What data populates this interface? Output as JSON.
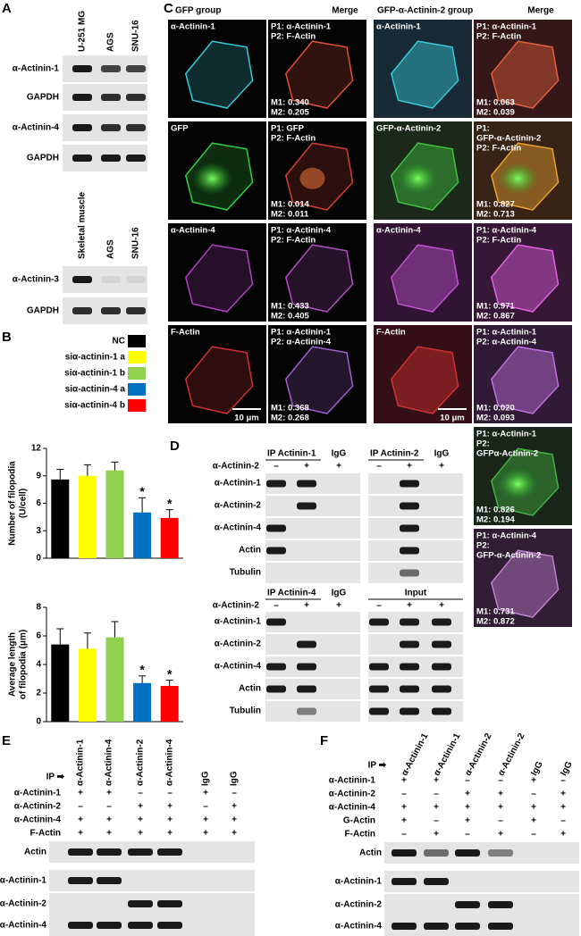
{
  "panel_a": {
    "label": "A",
    "blot1": {
      "lanes": [
        "U-251 MG",
        "AGS",
        "SNU-16"
      ],
      "rows": [
        "α-Actinin-1",
        "GAPDH",
        "α-Actinin-4",
        "GAPDH"
      ]
    },
    "blot2": {
      "lanes": [
        "Skeletal muscle",
        "AGS",
        "SNU-16"
      ],
      "rows": [
        "α-Actinin-3",
        "GAPDH"
      ]
    }
  },
  "chart_data": [
    {
      "type": "bar",
      "panel_label": "B",
      "categories": [
        "NC",
        "siα-actinin-1 a",
        "siα-actinin-1 b",
        "siα-actinin-4 a",
        "siα-actinin-4 b"
      ],
      "colors": [
        "#000000",
        "#ffff00",
        "#92d050",
        "#0070c0",
        "#ff0000"
      ],
      "values": [
        8.6,
        9.0,
        9.6,
        5.0,
        4.4
      ],
      "errors": [
        1.1,
        1.2,
        0.9,
        1.6,
        0.9
      ],
      "annotations": [
        null,
        null,
        null,
        "*",
        "*"
      ],
      "ylabel": [
        "Number of filopodia",
        "(U/cell)"
      ],
      "ylim": [
        0,
        12
      ],
      "yticks": [
        0,
        3,
        6,
        9,
        12
      ]
    },
    {
      "type": "bar",
      "colors": [
        "#000000",
        "#ffff00",
        "#92d050",
        "#0070c0",
        "#ff0000"
      ],
      "values": [
        5.4,
        5.1,
        5.9,
        2.7,
        2.5
      ],
      "errors": [
        1.1,
        1.1,
        1.1,
        0.5,
        0.4
      ],
      "annotations": [
        null,
        null,
        null,
        "*",
        "*"
      ],
      "ylabel": [
        "Average length",
        "of filopodia (μm)"
      ],
      "ylim": [
        0,
        8
      ],
      "yticks": [
        0,
        2,
        4,
        6,
        8
      ]
    }
  ],
  "panel_c": {
    "label": "C",
    "headers": [
      "GFP group",
      "Merge",
      "GFP-α-Actinin-2 group",
      "Merge"
    ],
    "scale_bar": "10 μm",
    "cells": [
      {
        "top": [
          "α-Actinin-1"
        ]
      },
      {
        "top": [
          "P1: α-Actinin-1",
          "P2: F-Actin"
        ],
        "bottom": [
          "M1: 0.340",
          "M2: 0.205"
        ]
      },
      {
        "top": [
          "α-Actinin-1"
        ]
      },
      {
        "top": [
          "P1: α-Actinin-1",
          "P2: F-Actin"
        ],
        "bottom": [
          "M1: 0.063",
          "M2: 0.039"
        ]
      },
      {
        "top": [
          "GFP"
        ]
      },
      {
        "top": [
          "P1: GFP",
          "P2: F-Actin"
        ],
        "bottom": [
          "M1: 0.014",
          "M2: 0.011"
        ]
      },
      {
        "top": [
          "GFP-α-Actinin-2"
        ]
      },
      {
        "top": [
          "P1:",
          "GFP-α-Actinin-2",
          "P2: F-Actin"
        ],
        "bottom": [
          "M1: 0.827",
          "M2: 0.713"
        ]
      },
      {
        "top": [
          "α-Actinin-4"
        ]
      },
      {
        "top": [
          "P1: α-Actinin-4",
          "P2: F-Actin"
        ],
        "bottom": [
          "M1: 0.433",
          "M2: 0.405"
        ]
      },
      {
        "top": [
          "α-Actinin-4"
        ]
      },
      {
        "top": [
          "P1: α-Actinin-4",
          "P2: F-Actin"
        ],
        "bottom": [
          "M1: 0.971",
          "M2: 0.867"
        ]
      },
      {
        "top": [
          "F-Actin"
        ]
      },
      {
        "top": [
          "P1: α-Actinin-1",
          "P2: α-Actinin-4"
        ],
        "bottom": [
          "M1: 0.368",
          "M2: 0.268"
        ]
      },
      {
        "top": [
          "F-Actin"
        ]
      },
      {
        "top": [
          "P1: α-Actinin-1",
          "P2: α-Actinin-4"
        ],
        "bottom": [
          "M1: 0.020",
          "M2: 0.093"
        ]
      },
      {
        "top": [
          "P1: α-Actinin-1",
          "P2:",
          "GFPα-Actinin-2"
        ],
        "bottom": [
          "M1: 0.826",
          "M2: 0.194"
        ]
      },
      {
        "top": [
          "P1: α-Actinin-4",
          "P2:",
          "GFP-α-Actinin-2"
        ],
        "bottom": [
          "M1: 0.731",
          "M2: 0.872"
        ]
      }
    ]
  },
  "panel_d": {
    "label": "D",
    "treatment": "α-Actinin-2",
    "signs": [
      "–",
      "+",
      "+"
    ],
    "top": {
      "groups": [
        {
          "title": "IP Actinin-1",
          "control": "IgG"
        },
        {
          "title": "IP Actinin-2",
          "control": "IgG"
        }
      ],
      "rows": [
        "α-Actinin-1",
        "α-Actinin-2",
        "α-Actinin-4",
        "Actin",
        "Tubulin"
      ]
    },
    "bottom": {
      "groups": [
        {
          "title": "IP Actinin-4",
          "control": "IgG"
        },
        {
          "title": "Input"
        }
      ],
      "rows": [
        "α-Actinin-1",
        "α-Actinin-2",
        "α-Actinin-4",
        "Actin",
        "Tubulin"
      ]
    }
  },
  "panel_e": {
    "label": "E",
    "ip_marker": "IP ➡",
    "lanes": [
      "α-Actinin-1",
      "α-Actinin-4",
      "α-Actinin-2",
      "α-Actinin-4",
      "IgG",
      "IgG"
    ],
    "conditions": [
      {
        "name": "α-Actinin-1",
        "signs": [
          "+",
          "+",
          "–",
          "–",
          "+",
          "–"
        ]
      },
      {
        "name": "α-Actinin-2",
        "signs": [
          "–",
          "–",
          "+",
          "+",
          "–",
          "+"
        ]
      },
      {
        "name": "α-Actinin-4",
        "signs": [
          "+",
          "+",
          "+",
          "+",
          "+",
          "+"
        ]
      },
      {
        "name": "F-Actin",
        "signs": [
          "+",
          "+",
          "+",
          "+",
          "+",
          "+"
        ]
      }
    ],
    "rows": [
      "Actin",
      "α-Actinin-1",
      "α-Actinin-2",
      "α-Actinin-4"
    ]
  },
  "panel_f": {
    "label": "F",
    "ip_marker": "IP ➡",
    "lanes": [
      "α-Actinin-1",
      "α-Actinin-1",
      "α-Actinin-2",
      "α-Actinin-2",
      "IgG",
      "IgG"
    ],
    "conditions": [
      {
        "name": "α-Actinin-1",
        "signs": [
          "+",
          "+",
          "–",
          "–",
          "+",
          "–"
        ]
      },
      {
        "name": "α-Actinin-2",
        "signs": [
          "–",
          "–",
          "+",
          "+",
          "–",
          "+"
        ]
      },
      {
        "name": "α-Actinin-4",
        "signs": [
          "+",
          "+",
          "+",
          "+",
          "+",
          "+"
        ]
      },
      {
        "name": "G-Actin",
        "signs": [
          "+",
          "–",
          "+",
          "–",
          "+",
          "–"
        ]
      },
      {
        "name": "F-Actin",
        "signs": [
          "–",
          "+",
          "–",
          "+",
          "–",
          "+"
        ]
      }
    ],
    "rows": [
      "Actin",
      "α-Actinin-1",
      "α-Actinin-2",
      "α-Actinin-4"
    ]
  }
}
